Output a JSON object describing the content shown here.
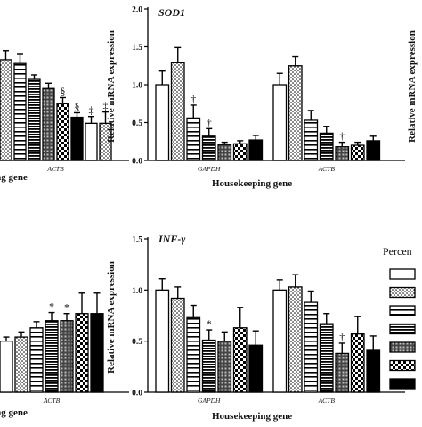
{
  "colors": {
    "ink": "#000000",
    "background": "#ffffff",
    "dark_gray": "#444444",
    "light_gray": "#bdbdbd"
  },
  "chart_data": [
    {
      "panel": "top-left",
      "type": "bar",
      "title": "",
      "xlabel": "ping gene",
      "ylabel": "",
      "ylim": [
        0,
        2.0
      ],
      "groups": [
        {
          "label": "ACTB",
          "values": [
            1.33,
            1.28,
            1.07,
            0.95,
            0.75,
            0.57,
            0.49,
            0.49
          ],
          "errors": [
            0.12,
            0.12,
            0.06,
            0.07,
            0.08,
            0.06,
            0.09,
            0.15
          ],
          "markers": [
            "",
            "",
            "",
            "",
            "§",
            "§",
            "‡",
            "‡"
          ]
        }
      ]
    },
    {
      "panel": "top-middle",
      "type": "bar",
      "title": "SOD1",
      "xlabel": "Housekeeping gene",
      "ylabel": "Relative mRNA expression",
      "ylim": [
        0,
        2.0
      ],
      "yticks": [
        "0.0",
        "0.5",
        "1.0",
        "1.5",
        "2.0"
      ],
      "groups": [
        {
          "label": "GAPDH",
          "values": [
            1.0,
            1.29,
            0.56,
            0.32,
            0.21,
            0.22,
            0.27
          ],
          "errors": [
            0.18,
            0.2,
            0.17,
            0.1,
            0.03,
            0.04,
            0.06
          ],
          "markers": [
            "",
            "",
            "†",
            "†",
            "",
            "",
            ""
          ]
        },
        {
          "label": "ACTB",
          "values": [
            1.0,
            1.25,
            0.53,
            0.36,
            0.18,
            0.2,
            0.26
          ],
          "errors": [
            0.15,
            0.12,
            0.13,
            0.09,
            0.06,
            0.04,
            0.06
          ],
          "markers": [
            "",
            "",
            "",
            "",
            "†",
            "",
            ""
          ]
        }
      ]
    },
    {
      "panel": "top-right",
      "type": "bar",
      "title": "",
      "xlabel": "",
      "ylabel": "Relative mRNA expression",
      "groups": []
    },
    {
      "panel": "bottom-left",
      "type": "bar",
      "title": "",
      "xlabel": "ping gene",
      "ylabel": "",
      "ylim": [
        0,
        1.5
      ],
      "groups": [
        {
          "label": "ACTB",
          "values": [
            0.5,
            0.54,
            0.63,
            0.7,
            0.7,
            0.77,
            0.77
          ],
          "errors": [
            0.04,
            0.05,
            0.06,
            0.08,
            0.07,
            0.2,
            0.2
          ],
          "markers": [
            "",
            "",
            "",
            "*",
            "*",
            "",
            ""
          ]
        }
      ]
    },
    {
      "panel": "bottom-middle",
      "type": "bar",
      "title": "INF-γ",
      "xlabel": "Housekeeping gene",
      "ylabel": "Relative mRNA expression",
      "ylim": [
        0,
        1.5
      ],
      "yticks": [
        "0.0",
        "0.5",
        "1.0",
        "1.5"
      ],
      "groups": [
        {
          "label": "GAPDH",
          "values": [
            1.0,
            0.92,
            0.73,
            0.51,
            0.5,
            0.63,
            0.46
          ],
          "errors": [
            0.11,
            0.11,
            0.12,
            0.1,
            0.09,
            0.2,
            0.14
          ],
          "markers": [
            "",
            "",
            "",
            "*",
            "",
            "",
            ""
          ]
        },
        {
          "label": "ACTB",
          "values": [
            1.0,
            1.03,
            0.88,
            0.67,
            0.38,
            0.57,
            0.41
          ],
          "errors": [
            0.1,
            0.12,
            0.11,
            0.1,
            0.1,
            0.17,
            0.14
          ],
          "markers": [
            "",
            "",
            "",
            "",
            "†",
            "",
            ""
          ]
        }
      ]
    }
  ],
  "legend": {
    "title": "Percen",
    "patterns": [
      "open",
      "dotted",
      "horizontal-lines",
      "dense-horizontal-lines",
      "gray-squares",
      "checkered",
      "solid-black"
    ]
  }
}
